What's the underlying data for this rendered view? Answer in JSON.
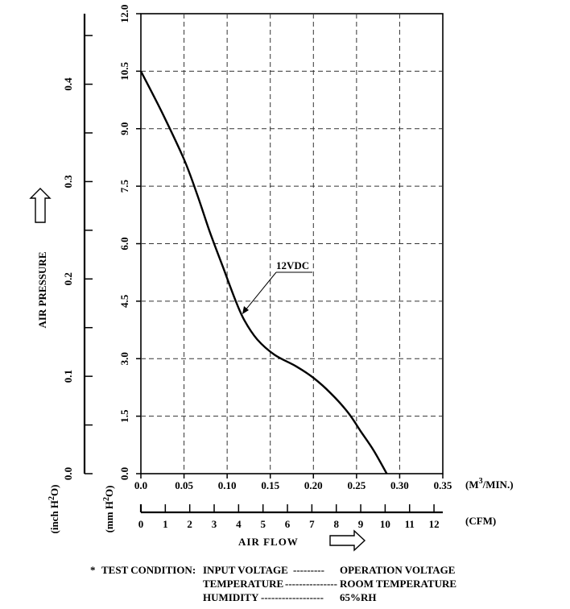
{
  "chart_data": {
    "type": "line",
    "title": "",
    "xlabel": "AIR FLOW",
    "ylabel": "AIR PRESSURE",
    "x_unit_primary": "(M",
    "x_unit_primary_sup": "3",
    "x_unit_primary_tail": "/MIN.)",
    "x_unit_secondary": "(CFM)",
    "y_unit_mm_prefix": "(mm H",
    "y_unit_mm_sup": "2",
    "y_unit_mm_suffix": "O)",
    "y_unit_inch_prefix": "(inch H",
    "y_unit_inch_sup": "2",
    "y_unit_inch_suffix": "O)",
    "xlim": [
      0,
      0.35
    ],
    "ylim": [
      0,
      12.0
    ],
    "x_ticks": [
      "0.0",
      "0.05",
      "0.10",
      "0.15",
      "0.20",
      "0.25",
      "0.30",
      "0.35"
    ],
    "x_tick_values": [
      0,
      0.05,
      0.1,
      0.15,
      0.2,
      0.25,
      0.3,
      0.35
    ],
    "cfm_ticks": [
      "0",
      "1",
      "2",
      "3",
      "4",
      "5",
      "6",
      "7",
      "8",
      "9",
      "10",
      "11",
      "12"
    ],
    "cfm_tick_values": [
      0,
      1,
      2,
      3,
      4,
      5,
      6,
      7,
      8,
      9,
      10,
      11,
      12
    ],
    "y_mm_ticks": [
      "0.0",
      "1.5",
      "3.0",
      "4.5",
      "6.0",
      "7.5",
      "9.0",
      "10.5",
      "12.0"
    ],
    "y_mm_tick_values": [
      0,
      1.5,
      3.0,
      4.5,
      6.0,
      7.5,
      9.0,
      10.5,
      12.0
    ],
    "y_inch_ticks": [
      "0.0",
      "0.1",
      "0.2",
      "0.3",
      "0.4"
    ],
    "y_inch_tick_values": [
      0,
      0.1,
      0.2,
      0.3,
      0.4
    ],
    "grid": true,
    "series": [
      {
        "name": "12VDC",
        "x": [
          0.0,
          0.025,
          0.05,
          0.065,
          0.08,
          0.095,
          0.11,
          0.12,
          0.135,
          0.155,
          0.18,
          0.2,
          0.22,
          0.24,
          0.255,
          0.27,
          0.285
        ],
        "y": [
          10.5,
          9.4,
          8.2,
          7.3,
          6.3,
          5.4,
          4.5,
          4.0,
          3.5,
          3.1,
          2.8,
          2.5,
          2.1,
          1.6,
          1.1,
          0.6,
          0.0
        ]
      }
    ]
  },
  "test_condition": {
    "star": "*",
    "heading": "TEST CONDITION:",
    "rows": [
      {
        "label": "INPUT VOLTAGE",
        "dashes": "---------",
        "value": "OPERATION VOLTAGE"
      },
      {
        "label": "TEMPERATURE",
        "dashes": "---------------",
        "value": "ROOM TEMPERATURE"
      },
      {
        "label": "HUMIDITY",
        "dashes": "------------------",
        "value": "65%RH"
      }
    ]
  }
}
